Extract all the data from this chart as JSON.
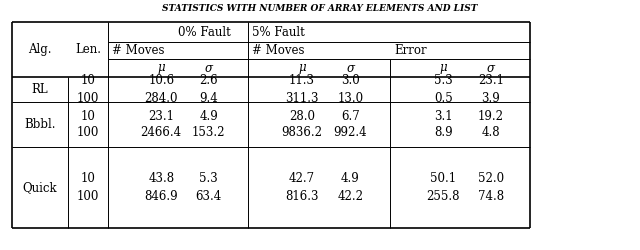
{
  "title": "STATISTICS WITH NUMBER OF ARRAY ELEMENTS AND LIST",
  "col_len": [
    "10",
    "100",
    "10",
    "100",
    "10",
    "100"
  ],
  "fault0_moves_mu": [
    "10.6",
    "284.0",
    "23.1",
    "2466.4",
    "43.8",
    "846.9"
  ],
  "fault0_moves_sigma": [
    "2.6",
    "9.4",
    "4.9",
    "153.2",
    "5.3",
    "63.4"
  ],
  "fault5_moves_mu": [
    "11.3",
    "311.3",
    "28.0",
    "9836.2",
    "42.7",
    "816.3"
  ],
  "fault5_moves_sigma": [
    "3.0",
    "13.0",
    "6.7",
    "992.4",
    "4.9",
    "42.2"
  ],
  "fault5_error_mu": [
    "5.3",
    "0.5",
    "3.1",
    "8.9",
    "50.1",
    "255.8"
  ],
  "fault5_error_sigma": [
    "23.1",
    "3.9",
    "19.2",
    "4.8",
    "52.0",
    "74.8"
  ],
  "mu_label": "μ",
  "sigma_label": "σ",
  "alg_label": "Alg.",
  "len_label": "Len.",
  "font_size": 8.5,
  "title_font_size": 6.5
}
